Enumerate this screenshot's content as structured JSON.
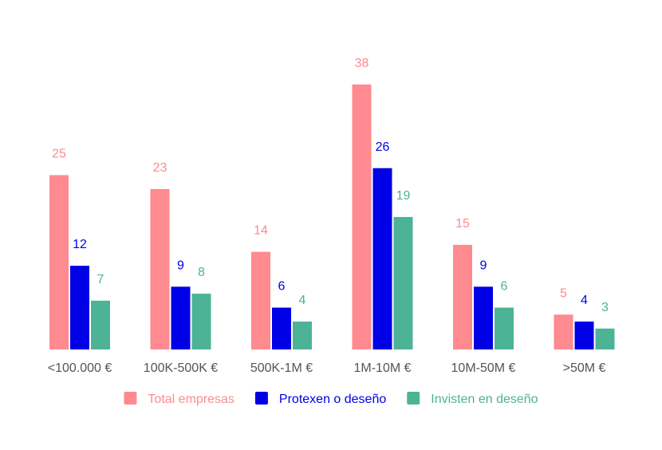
{
  "chart_data": {
    "type": "bar",
    "categories": [
      "<100.000 €",
      "100K-500K €",
      "500K-1M €",
      "1M-10M €",
      "10M-50M €",
      ">50M €"
    ],
    "series": [
      {
        "name": "Total empresas",
        "color": "#ff8a8f",
        "values": [
          25,
          23,
          14,
          38,
          15,
          5
        ]
      },
      {
        "name": "Protexen o deseño",
        "color": "#0000e6",
        "values": [
          12,
          9,
          6,
          26,
          9,
          4
        ]
      },
      {
        "name": "Invisten en deseño",
        "color": "#4db396",
        "values": [
          7,
          8,
          4,
          19,
          6,
          3
        ]
      }
    ],
    "ylim": [
      0,
      40
    ],
    "grid": false,
    "legend_position": "bottom",
    "data_labels": true
  }
}
